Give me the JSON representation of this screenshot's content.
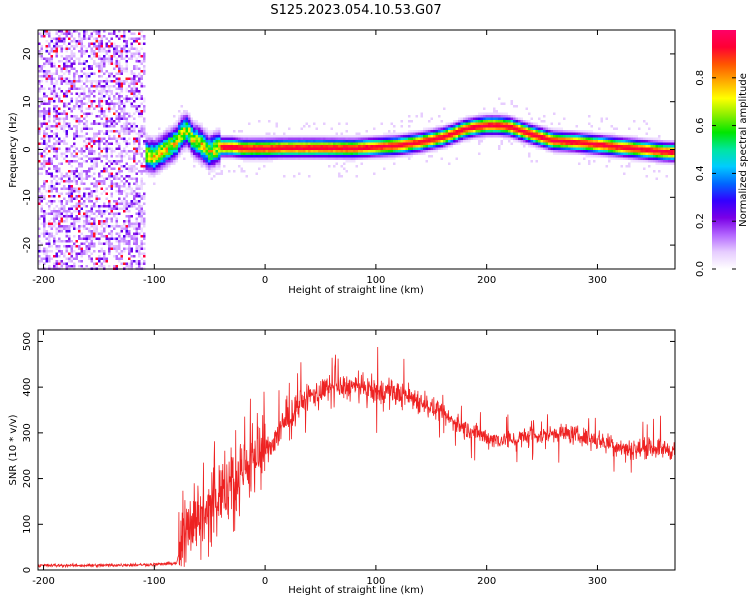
{
  "title": "S125.2023.054.10.53.G07",
  "chart_data": [
    {
      "type": "heatmap",
      "xlabel": "Height of straight line (km)",
      "ylabel": "Frequency (Hz)",
      "xlim": [
        -205,
        370
      ],
      "ylim": [
        -25,
        25
      ],
      "xticks": [
        -200,
        -100,
        0,
        100,
        200,
        300
      ],
      "yticks": [
        -20,
        -10,
        0,
        10,
        20
      ],
      "grid": false,
      "colorbar": {
        "label": "Normalized spectral amplitude",
        "range": [
          0,
          1
        ],
        "ticks": [
          0.0,
          0.2,
          0.4,
          0.6,
          0.8
        ],
        "colors": [
          "#ffffff",
          "#e6ccff",
          "#b366ff",
          "#7a00e6",
          "#3300ff",
          "#0066ff",
          "#00ccff",
          "#00e6a0",
          "#00e600",
          "#88ee00",
          "#ffff00",
          "#ffaa00",
          "#ff5500",
          "#ff0033",
          "#ff0066"
        ]
      },
      "noise_region_x": [
        -205,
        -108
      ],
      "ridge": {
        "x": [
          -108,
          -100,
          -90,
          -80,
          -75,
          -70,
          -65,
          -60,
          -55,
          -50,
          -45,
          -40,
          -30,
          -20,
          0,
          20,
          50,
          80,
          100,
          120,
          140,
          160,
          170,
          180,
          190,
          200,
          210,
          220,
          230,
          240,
          250,
          260,
          280,
          300,
          320,
          340,
          360,
          370
        ],
        "y": [
          -1.0,
          -1.5,
          0.0,
          1.5,
          3.5,
          4.0,
          2.0,
          1.5,
          0.5,
          -0.5,
          0.0,
          0.5,
          0.5,
          0.2,
          0.2,
          0.3,
          0.3,
          0.2,
          0.5,
          0.8,
          1.5,
          2.5,
          3.3,
          4.2,
          4.7,
          5.0,
          5.0,
          4.8,
          4.0,
          3.2,
          2.5,
          1.8,
          1.5,
          1.0,
          0.5,
          0.0,
          -0.5,
          -0.6
        ]
      }
    },
    {
      "type": "line",
      "xlabel": "Height of straight line (km)",
      "ylabel": "SNR (10 * v/v)",
      "xlim": [
        -205,
        370
      ],
      "ylim": [
        0,
        525
      ],
      "xticks": [
        -200,
        -100,
        0,
        100,
        200,
        300
      ],
      "yticks": [
        0,
        100,
        200,
        300,
        400,
        500
      ],
      "grid": false,
      "series": [
        {
          "color": "#ee2222",
          "x": [
            -205,
            -150,
            -100,
            -80,
            -75,
            -70,
            -60,
            -50,
            -40,
            -30,
            -20,
            -10,
            0,
            10,
            20,
            30,
            40,
            50,
            60,
            70,
            80,
            90,
            100,
            110,
            120,
            130,
            140,
            150,
            160,
            170,
            180,
            190,
            200,
            210,
            220,
            230,
            240,
            250,
            260,
            270,
            280,
            290,
            300,
            310,
            320,
            330,
            340,
            350,
            360,
            370
          ],
          "y": [
            10,
            10,
            12,
            15,
            60,
            100,
            120,
            130,
            160,
            190,
            220,
            240,
            260,
            290,
            330,
            360,
            380,
            390,
            395,
            400,
            400,
            395,
            390,
            390,
            385,
            380,
            370,
            355,
            340,
            325,
            310,
            300,
            290,
            285,
            285,
            288,
            292,
            295,
            300,
            300,
            295,
            290,
            285,
            278,
            270,
            265,
            265,
            268,
            265,
            260
          ]
        }
      ]
    }
  ]
}
